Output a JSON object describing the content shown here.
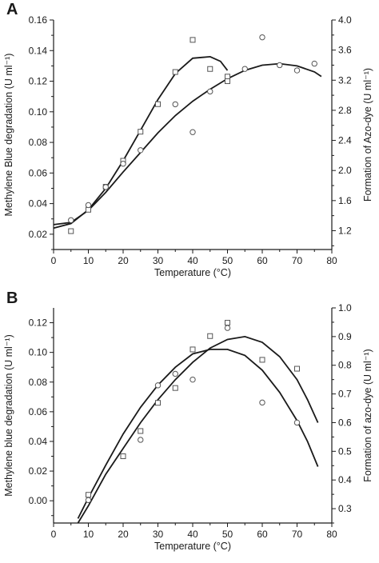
{
  "chart_data": [
    {
      "panel_label": "A",
      "type": "scatter",
      "xlabel": "Temperature (°C)",
      "ylabel_left": "Methylene Blue degradation (U ml⁻¹)",
      "ylabel_right": "Formation of Azo-dye (U ml⁻¹)",
      "xlim": [
        0,
        80
      ],
      "xticks": [
        0,
        10,
        20,
        30,
        40,
        50,
        60,
        70,
        80
      ],
      "ylim_left": [
        0.01,
        0.16
      ],
      "yticks_left": [
        "0.02",
        "0.04",
        "0.06",
        "0.08",
        "0.10",
        "0.12",
        "0.14",
        "0.16"
      ],
      "ylim_right": [
        0.95,
        4.0
      ],
      "yticks_right": [
        "1.2",
        "1.6",
        "2.0",
        "2.4",
        "2.8",
        "3.2",
        "3.6",
        "4.0"
      ],
      "grid": false,
      "series": [
        {
          "marker": "square",
          "axis": "left",
          "x": [
            5,
            10,
            15,
            20,
            25,
            30,
            35,
            40,
            45,
            50,
            50
          ],
          "y": [
            0.022,
            0.036,
            0.051,
            0.068,
            0.087,
            0.105,
            0.126,
            0.147,
            0.128,
            0.123,
            0.12
          ],
          "fit": {
            "x": [
              0,
              5,
              10,
              15,
              20,
              25,
              30,
              35,
              40,
              45,
              48,
              50
            ],
            "y": [
              0.024,
              0.027,
              0.036,
              0.05,
              0.068,
              0.088,
              0.108,
              0.125,
              0.135,
              0.136,
              0.133,
              0.127
            ]
          }
        },
        {
          "marker": "circle",
          "axis": "right",
          "x": [
            5,
            10,
            15,
            20,
            25,
            35,
            40,
            45,
            55,
            60,
            65,
            70,
            75
          ],
          "y": [
            1.34,
            1.54,
            1.78,
            2.09,
            2.27,
            2.88,
            2.51,
            3.05,
            3.35,
            3.77,
            3.4,
            3.33,
            3.42
          ],
          "fit": {
            "x": [
              0,
              5,
              10,
              15,
              20,
              25,
              30,
              35,
              40,
              45,
              50,
              55,
              60,
              65,
              70,
              75,
              77
            ],
            "y": [
              1.28,
              1.31,
              1.47,
              1.71,
              1.98,
              2.24,
              2.5,
              2.73,
              2.92,
              3.08,
              3.22,
              3.33,
              3.4,
              3.42,
              3.39,
              3.31,
              3.25
            ]
          }
        }
      ]
    },
    {
      "panel_label": "B",
      "type": "scatter",
      "xlabel": "Temperature (°C)",
      "ylabel_left": "Methylene blue degradation (U ml⁻¹)",
      "ylabel_right": "Formation of azo-dye (U ml⁻¹)",
      "xlim": [
        0,
        80
      ],
      "xticks": [
        0,
        10,
        20,
        30,
        40,
        50,
        60,
        70,
        80
      ],
      "ylim_left": [
        -0.015,
        0.13
      ],
      "yticks_left": [
        "0.00",
        "0.02",
        "0.04",
        "0.06",
        "0.08",
        "0.10",
        "0.12"
      ],
      "ylim_right": [
        0.25,
        1.0
      ],
      "yticks_right": [
        "0.3",
        "0.4",
        "0.5",
        "0.6",
        "0.7",
        "0.8",
        "0.9",
        "1.0"
      ],
      "grid": false,
      "series": [
        {
          "marker": "square",
          "axis": "left",
          "x": [
            10,
            20,
            25,
            30,
            35,
            40,
            45,
            50,
            60,
            70
          ],
          "y": [
            0.004,
            0.03,
            0.047,
            0.066,
            0.076,
            0.102,
            0.111,
            0.12,
            0.095,
            0.089
          ],
          "fit": {
            "x": [
              7,
              10,
              15,
              20,
              25,
              30,
              35,
              40,
              45,
              50,
              55,
              60,
              65,
              70,
              73,
              76
            ],
            "y": [
              -0.012,
              0.002,
              0.024,
              0.045,
              0.063,
              0.078,
              0.09,
              0.099,
              0.102,
              0.102,
              0.098,
              0.088,
              0.073,
              0.054,
              0.04,
              0.023
            ]
          }
        },
        {
          "marker": "circle",
          "axis": "right",
          "x": [
            10,
            25,
            30,
            35,
            40,
            50,
            60,
            70
          ],
          "y": [
            0.33,
            0.54,
            0.73,
            0.77,
            0.75,
            0.93,
            0.67,
            0.6
          ],
          "fit": {
            "x": [
              7,
              10,
              15,
              20,
              25,
              30,
              35,
              40,
              45,
              50,
              55,
              60,
              65,
              70,
              73,
              76
            ],
            "y": [
              0.25,
              0.31,
              0.42,
              0.51,
              0.6,
              0.68,
              0.75,
              0.81,
              0.86,
              0.89,
              0.9,
              0.88,
              0.83,
              0.75,
              0.68,
              0.6
            ]
          }
        }
      ]
    }
  ]
}
